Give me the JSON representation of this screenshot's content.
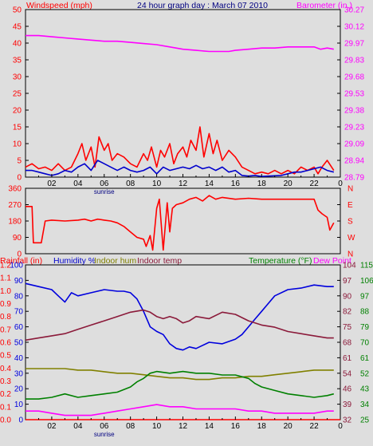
{
  "header": {
    "windspeed_label": "Windspeed (mph)",
    "title": "24 hour graph day : March 07 2010",
    "barometer_label": "Barometer (in.)"
  },
  "bottom_header": {
    "rainfall_label": "Rainfall (in)",
    "humidity_label": "Humidity %",
    "indoor_hum_label": "Indoor hum",
    "indoor_temp_label": "Indoor temp",
    "temperature_label": "Temperature (°F)",
    "dew_point_label": "Dew Point"
  },
  "colors": {
    "background": "#dedede",
    "frame": "#000000",
    "wind_gust": "#ff0000",
    "wind_avg": "#0000cc",
    "barometer": "#ff00ff",
    "direction": "#ff0000",
    "humidity": "#0000dd",
    "indoor_hum": "#808000",
    "indoor_temp": "#8b1a3a",
    "temperature": "#008000",
    "dew_point": "#ff00ff",
    "rain": "#ff0000",
    "left_axis_text": "#ff0000",
    "title_text": "#000080",
    "sunrise_text": "#000080"
  },
  "x_axis": {
    "tick_labels": [
      "02",
      "04",
      "06",
      "08",
      "10",
      "12",
      "14",
      "16",
      "18",
      "20",
      "22",
      "0"
    ],
    "sunrise_label": "sunrise",
    "sunrise_hour": 6.0
  },
  "chart_data": [
    {
      "type": "line",
      "name": "wind_barometer",
      "x_range_hours": [
        0,
        24
      ],
      "left_axis": {
        "ticks": [
          "0",
          "5",
          "10",
          "15",
          "20",
          "25",
          "30",
          "35",
          "40",
          "45",
          "50"
        ],
        "ylim": [
          0,
          50
        ]
      },
      "right_axis": {
        "ticks": [
          "28.79",
          "28.94",
          "29.09",
          "29.23",
          "29.38",
          "29.53",
          "29.68",
          "29.83",
          "29.97",
          "30.12",
          "30.27"
        ],
        "ylim": [
          28.79,
          30.27
        ]
      },
      "series": [
        {
          "name": "Windspeed",
          "axis": "left",
          "color_key": "wind_gust",
          "x": [
            0,
            0.5,
            1,
            1.5,
            2,
            2.5,
            3,
            3.5,
            4,
            4.3,
            4.6,
            5,
            5.3,
            5.6,
            6,
            6.3,
            6.6,
            7,
            7.5,
            8,
            8.5,
            9,
            9.3,
            9.6,
            10,
            10.3,
            10.6,
            11,
            11.3,
            11.6,
            12,
            12.3,
            12.6,
            13,
            13.3,
            13.6,
            14,
            14.3,
            14.6,
            15,
            15.5,
            16,
            16.5,
            17,
            17.5,
            18,
            18.5,
            19,
            19.5,
            20,
            20.5,
            21,
            21.5,
            22,
            22.3,
            22.6,
            23,
            23.5
          ],
          "values": [
            3,
            4,
            2.5,
            3,
            2,
            4,
            2,
            3,
            7,
            10,
            5,
            9,
            3,
            12,
            8,
            10,
            5,
            7,
            6,
            4,
            3,
            7,
            5,
            9,
            3,
            8,
            6,
            10,
            4,
            7,
            9,
            6,
            11,
            8,
            15,
            6,
            13,
            7,
            11,
            5,
            8,
            6,
            3,
            2,
            1,
            1.5,
            1,
            2,
            1,
            2,
            1,
            3,
            2,
            3,
            1,
            3,
            5,
            2
          ]
        },
        {
          "name": "Wind average",
          "axis": "left",
          "color_key": "wind_avg",
          "x": [
            0,
            0.5,
            1,
            1.5,
            2,
            2.5,
            3,
            3.5,
            4,
            4.5,
            5,
            5.5,
            6,
            6.5,
            7,
            7.5,
            8,
            8.5,
            9,
            9.5,
            10,
            10.5,
            11,
            11.5,
            12,
            12.5,
            13,
            13.5,
            14,
            14.5,
            15,
            15.5,
            16,
            16.5,
            17,
            17.5,
            18,
            18.5,
            19,
            19.5,
            20,
            20.5,
            21,
            21.5,
            22,
            22.5,
            23,
            23.5
          ],
          "values": [
            2,
            2,
            1.5,
            1,
            0.5,
            1,
            2,
            1.5,
            3,
            4,
            2,
            5,
            4,
            3,
            2,
            3,
            2,
            1.5,
            2,
            3,
            1,
            3,
            2,
            2.5,
            3,
            2.5,
            3.5,
            2.5,
            3,
            2,
            3,
            1.5,
            2,
            0.5,
            0.3,
            0.5,
            0.2,
            0.3,
            0.4,
            0.5,
            1,
            1.5,
            1.5,
            2,
            2.5,
            3,
            2,
            1.5
          ]
        },
        {
          "name": "Barometer",
          "axis": "right",
          "color_key": "barometer",
          "x": [
            0,
            1,
            2,
            3,
            4,
            5,
            6,
            7,
            8,
            9,
            10,
            11,
            12,
            13,
            14,
            15,
            15.5,
            16,
            17,
            18,
            19,
            20,
            21,
            22,
            22.5,
            23,
            23.5
          ],
          "values": [
            30.04,
            30.04,
            30.03,
            30.02,
            30.01,
            30.0,
            29.99,
            29.99,
            29.98,
            29.97,
            29.96,
            29.94,
            29.92,
            29.91,
            29.9,
            29.9,
            29.9,
            29.91,
            29.92,
            29.93,
            29.93,
            29.94,
            29.94,
            29.94,
            29.92,
            29.93,
            29.92
          ]
        }
      ]
    },
    {
      "type": "line",
      "name": "wind_direction",
      "x_range_hours": [
        0,
        24
      ],
      "left_axis": {
        "ticks": [
          "0",
          "90",
          "180",
          "270",
          "360"
        ],
        "ylim": [
          0,
          360
        ]
      },
      "right_axis": {
        "ticks": [
          "N",
          "W",
          "S",
          "E",
          "N"
        ]
      },
      "series": [
        {
          "name": "Wind direction",
          "axis": "left",
          "color_key": "direction",
          "x": [
            0,
            0.5,
            0.6,
            1.2,
            1.5,
            2,
            3,
            4,
            4.5,
            5,
            5.5,
            6,
            6.5,
            7,
            7.5,
            8,
            8.5,
            9,
            9.2,
            9.5,
            9.7,
            10,
            10.2,
            10.5,
            10.8,
            11,
            11.2,
            11.5,
            12,
            12.5,
            13,
            13.5,
            14,
            14.5,
            15,
            16,
            17,
            18,
            19,
            20,
            21,
            22,
            22.3,
            22.6,
            23,
            23.2,
            23.5
          ],
          "values": [
            260,
            260,
            60,
            60,
            180,
            185,
            180,
            185,
            190,
            180,
            190,
            185,
            180,
            170,
            150,
            120,
            90,
            80,
            40,
            100,
            20,
            250,
            300,
            20,
            280,
            120,
            250,
            270,
            280,
            300,
            310,
            290,
            320,
            300,
            310,
            300,
            305,
            300,
            300,
            300,
            300,
            300,
            240,
            220,
            200,
            130,
            170
          ]
        }
      ]
    },
    {
      "type": "line",
      "name": "humidity_temperature",
      "x_range_hours": [
        0,
        24
      ],
      "left_axis_rain": {
        "ticks": [
          "0.0",
          "0.1",
          "0.2",
          "0.3",
          "0.4",
          "0.5",
          "0.6",
          "0.7",
          "0.8",
          "0.9",
          "1.0",
          "1.1",
          "1.2"
        ]
      },
      "left_axis_humidity": {
        "ticks": [
          "0",
          "10",
          "20",
          "30",
          "40",
          "50",
          "60",
          "70",
          "80",
          "90",
          "100"
        ],
        "ylim": [
          0,
          100
        ]
      },
      "right_axis_inner": {
        "ticks": [
          "32",
          "39",
          "46",
          "54",
          "61",
          "68",
          "75",
          "82",
          "90",
          "97",
          "104"
        ],
        "ylim": [
          32,
          104
        ]
      },
      "right_axis_outer": {
        "ticks": [
          "25",
          "34",
          "43",
          "52",
          "61",
          "70",
          "79",
          "88",
          "97",
          "106",
          "115"
        ],
        "ylim": [
          25,
          115
        ]
      },
      "series": [
        {
          "name": "Humidity",
          "axis": "left_humidity",
          "color_key": "humidity",
          "x": [
            0,
            1,
            2,
            2.5,
            3,
            3.5,
            4,
            5,
            6,
            7,
            7.5,
            8,
            8.5,
            9,
            9.5,
            10,
            10.5,
            11,
            11.5,
            12,
            12.5,
            13,
            14,
            15,
            16,
            16.5,
            17,
            17.5,
            18,
            19,
            20,
            21,
            22,
            23,
            23.5
          ],
          "values": [
            88,
            86,
            84,
            80,
            76,
            82,
            80,
            82,
            84,
            83,
            83,
            82,
            78,
            70,
            60,
            57,
            55,
            49,
            46,
            45,
            47,
            46,
            50,
            49,
            52,
            55,
            60,
            65,
            70,
            80,
            84,
            85,
            87,
            86,
            86
          ]
        },
        {
          "name": "Indoor hum",
          "axis": "left_humidity",
          "color_key": "indoor_hum",
          "x": [
            0,
            1,
            2,
            3,
            4,
            5,
            6,
            7,
            8,
            9,
            10,
            11,
            12,
            13,
            14,
            15,
            16,
            17,
            18,
            19,
            20,
            21,
            22,
            23,
            23.5
          ],
          "values": [
            33,
            33,
            33,
            33,
            32,
            32,
            31,
            30,
            30,
            29,
            28,
            27,
            27,
            26,
            26,
            27,
            27,
            28,
            28,
            29,
            30,
            31,
            32,
            32,
            32
          ]
        },
        {
          "name": "Indoor temp",
          "axis": "right_inner",
          "color_key": "indoor_temp",
          "x": [
            0,
            1,
            2,
            3,
            4,
            5,
            6,
            7,
            8,
            9,
            9.5,
            10,
            10.5,
            11,
            11.5,
            12,
            12.5,
            13,
            14,
            15,
            16,
            17,
            18,
            19,
            20,
            21,
            22,
            23,
            23.5
          ],
          "values": [
            69,
            70,
            71,
            72,
            74,
            76,
            78,
            80,
            82,
            83,
            82,
            80,
            79,
            80,
            79,
            77,
            78,
            80,
            79,
            82,
            81,
            78,
            76,
            75,
            73,
            72,
            71,
            70,
            70
          ]
        },
        {
          "name": "Temperature",
          "axis": "right_outer",
          "color_key": "temperature",
          "x": [
            0,
            1,
            2,
            3,
            4,
            5,
            6,
            7,
            8,
            8.5,
            9,
            9.5,
            10,
            11,
            12,
            13,
            14,
            15,
            16,
            17,
            17.5,
            18,
            19,
            20,
            21,
            22,
            23,
            23.5
          ],
          "values": [
            37,
            37,
            38,
            40,
            38,
            39,
            40,
            41,
            44,
            47,
            49,
            52,
            53,
            52,
            53,
            52,
            52,
            51,
            51,
            49,
            46,
            44,
            42,
            40,
            39,
            38,
            39,
            40
          ]
        },
        {
          "name": "Dew Point",
          "axis": "right_inner",
          "color_key": "dew_point",
          "x": [
            0,
            1,
            2,
            3,
            4,
            5,
            6,
            7,
            8,
            9,
            10,
            11,
            12,
            13,
            14,
            15,
            16,
            17,
            18,
            19,
            20,
            21,
            22,
            23,
            23.5
          ],
          "values": [
            36,
            36,
            35,
            34,
            34,
            34,
            35,
            36,
            37,
            38,
            39,
            38,
            38,
            37,
            37,
            37,
            37,
            36,
            36,
            35,
            35,
            35,
            35,
            36,
            36
          ]
        },
        {
          "name": "Rainfall",
          "axis": "left_rain",
          "color_key": "rain",
          "x": [
            0,
            24
          ],
          "values": [
            0,
            0
          ]
        }
      ]
    }
  ]
}
